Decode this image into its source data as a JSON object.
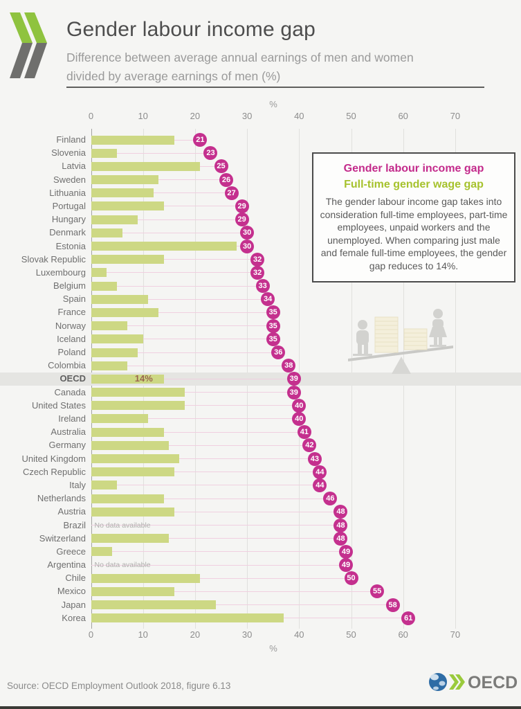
{
  "header": {
    "title": "Gender labour income gap",
    "subtitle_line1": "Difference between average annual earnings of men and women",
    "subtitle_line2": "divided by average earnings of men (%)"
  },
  "axis": {
    "label": "%",
    "ticks": [
      "0",
      "10",
      "20",
      "30",
      "40",
      "50",
      "60",
      "70"
    ]
  },
  "legend_box": {
    "title_income": "Gender labour income gap",
    "title_wage": "Full-time gender wage gap",
    "body": "The gender labour income gap takes into consideration full-time employees, part-time employees, unpaid workers and the unemployed. When comparing just male and female full-time employees, the gender gap reduces to 14%."
  },
  "no_data_text": "No data available",
  "footer": {
    "source": "Source: OECD Employment Outlook 2018, figure 6.13",
    "logo_text": "OECD"
  },
  "colors": {
    "gap_circle": "#c4308e",
    "wage_bar": "#cdd884",
    "legend_income": "#c32a8b",
    "legend_wage": "#a6c22d",
    "logo_green": "#8fc33f",
    "logo_grey": "#6f6f6d",
    "title_text": "#4d4d4d",
    "oecd_band": "#e5e5e2",
    "oecd_value_text": "#9b674e"
  },
  "chart_data": {
    "type": "bar",
    "orientation": "horizontal",
    "title": "Gender labour income gap",
    "xlabel": "%",
    "xlim": [
      0,
      70
    ],
    "grid": true,
    "categories": [
      "Finland",
      "Slovenia",
      "Latvia",
      "Sweden",
      "Lithuania",
      "Portugal",
      "Hungary",
      "Denmark",
      "Estonia",
      "Slovak Republic",
      "Luxembourg",
      "Belgium",
      "Spain",
      "France",
      "Norway",
      "Iceland",
      "Poland",
      "Colombia",
      "OECD",
      "Canada",
      "United States",
      "Ireland",
      "Australia",
      "Germany",
      "United Kingdom",
      "Czech Republic",
      "Italy",
      "Netherlands",
      "Austria",
      "Brazil",
      "Switzerland",
      "Greece",
      "Argentina",
      "Chile",
      "Mexico",
      "Japan",
      "Korea"
    ],
    "series": [
      {
        "name": "Gender labour income gap",
        "style": "circle-marker",
        "color": "#c4308e",
        "values": [
          21,
          23,
          25,
          26,
          27,
          29,
          29,
          30,
          30,
          32,
          32,
          33,
          34,
          35,
          35,
          35,
          36,
          38,
          39,
          39,
          40,
          40,
          41,
          42,
          43,
          44,
          44,
          46,
          48,
          48,
          48,
          49,
          49,
          50,
          55,
          58,
          61
        ]
      },
      {
        "name": "Full-time gender wage gap",
        "style": "bar",
        "color": "#cdd884",
        "values": [
          16,
          5,
          21,
          13,
          12,
          14,
          9,
          6,
          28,
          14,
          3,
          5,
          11,
          13,
          7,
          10,
          9,
          7,
          14,
          18,
          18,
          11,
          14,
          15,
          17,
          16,
          5,
          14,
          16,
          null,
          15,
          4,
          null,
          21,
          16,
          24,
          37
        ]
      }
    ],
    "highlight_row": "OECD",
    "highlight_value_label": "14%",
    "no_data_rows": [
      "Brazil",
      "Argentina"
    ]
  }
}
